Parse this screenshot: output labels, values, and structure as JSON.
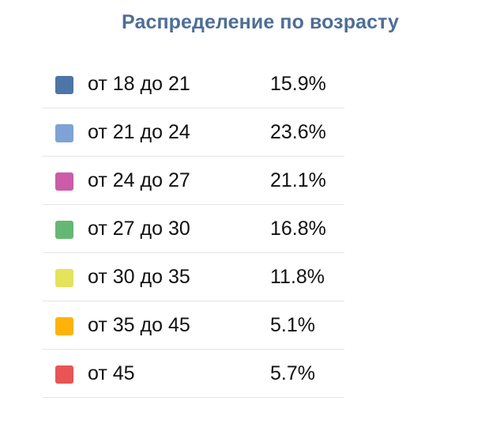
{
  "widget": {
    "title": "Распределение по возрасту",
    "rows": [
      {
        "label": "от 18 до 21",
        "value": "15.9%",
        "color": "#4d75a8"
      },
      {
        "label": "от 21 до 24",
        "value": "23.6%",
        "color": "#7ea3d4"
      },
      {
        "label": "от 24 до 27",
        "value": "21.1%",
        "color": "#cc5ca9"
      },
      {
        "label": "от 27 до 30",
        "value": "16.8%",
        "color": "#65b874"
      },
      {
        "label": "от 30 до 35",
        "value": "11.8%",
        "color": "#e5e35b"
      },
      {
        "label": "от 35 до 45",
        "value": "5.1%",
        "color": "#ffb20a"
      },
      {
        "label": "от 45",
        "value": "5.7%",
        "color": "#e85555"
      }
    ]
  }
}
